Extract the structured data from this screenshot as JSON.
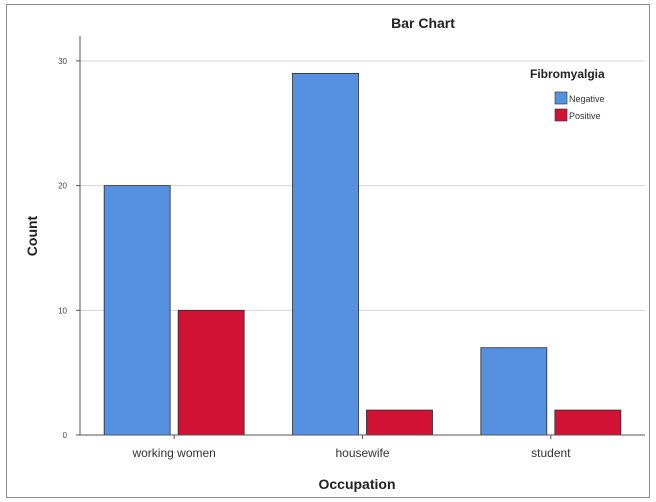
{
  "chart_data": {
    "type": "bar",
    "title": "Bar Chart",
    "xlabel": "Occupation",
    "ylabel": "Count",
    "categories": [
      "working women",
      "housewife",
      "student"
    ],
    "series": [
      {
        "name": "Negative",
        "values": [
          20,
          29,
          7
        ],
        "color": "#5591e0"
      },
      {
        "name": "Positive",
        "values": [
          10,
          2,
          2
        ],
        "color": "#d11235"
      }
    ],
    "ylim": [
      0,
      32
    ],
    "yticks": [
      0,
      10,
      20,
      30
    ],
    "grid": true,
    "legend": {
      "title": "Fibromyalgia",
      "position": "top-right"
    }
  }
}
